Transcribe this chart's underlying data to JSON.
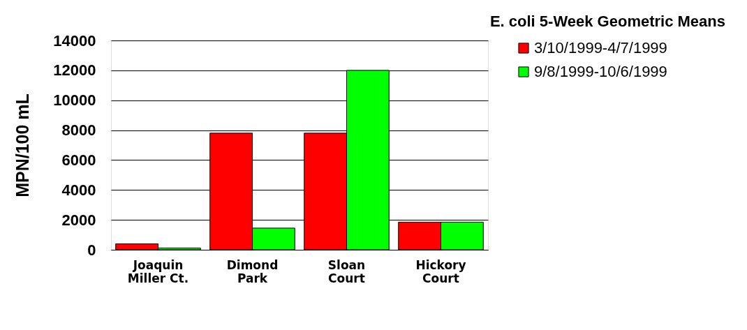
{
  "chart_data": {
    "type": "bar",
    "title": "E. coli 5-Week Geometric Means",
    "ylabel": "MPN/100 mL",
    "categories": [
      "Joaquin Miller Ct.",
      "Dimond Park",
      "Sloan Court",
      "Hickory Court"
    ],
    "series": [
      {
        "name": "3/10/1999-4/7/1999",
        "color": "#ff0000",
        "values": [
          400,
          7800,
          7800,
          1850
        ]
      },
      {
        "name": "9/8/1999-10/6/1999",
        "color": "#00ff00",
        "values": [
          120,
          1450,
          12000,
          1850
        ]
      }
    ],
    "ylim": [
      0,
      14000
    ],
    "yticks": [
      0,
      2000,
      4000,
      6000,
      8000,
      10000,
      12000,
      14000
    ],
    "grid": "y",
    "legend": "right"
  }
}
